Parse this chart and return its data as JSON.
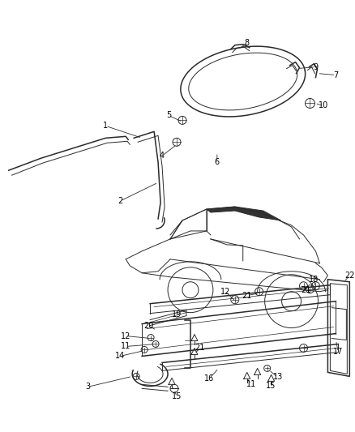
{
  "background_color": "#ffffff",
  "line_color": "#2a2a2a",
  "label_color": "#000000",
  "fig_width": 4.39,
  "fig_height": 5.33,
  "dpi": 100
}
